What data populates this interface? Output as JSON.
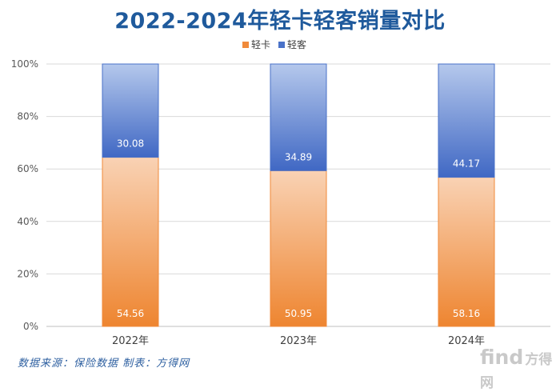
{
  "chart_data": {
    "type": "bar",
    "stacked": "percent",
    "title": "2022-2024年轻卡轻客销量对比",
    "categories": [
      "2022年",
      "2023年",
      "2024年"
    ],
    "series": [
      {
        "name": "轻卡",
        "values": [
          54.56,
          50.95,
          58.16
        ],
        "labels": [
          "54.56",
          "50.95",
          "58.16"
        ],
        "color": "#f08a3a"
      },
      {
        "name": "轻客",
        "values": [
          30.08,
          34.89,
          44.17
        ],
        "labels": [
          "30.08",
          "34.89",
          "44.17"
        ],
        "color": "#4a72c8"
      }
    ],
    "y_ticks": [
      "0%",
      "20%",
      "40%",
      "60%",
      "80%",
      "100%"
    ],
    "ylim": [
      0,
      100
    ],
    "legend_position": "top",
    "grid": true
  },
  "footer": {
    "source": "数据来源：保险数据 制表：方得网",
    "watermark_brand": "find",
    "watermark_cn": "方得网"
  }
}
